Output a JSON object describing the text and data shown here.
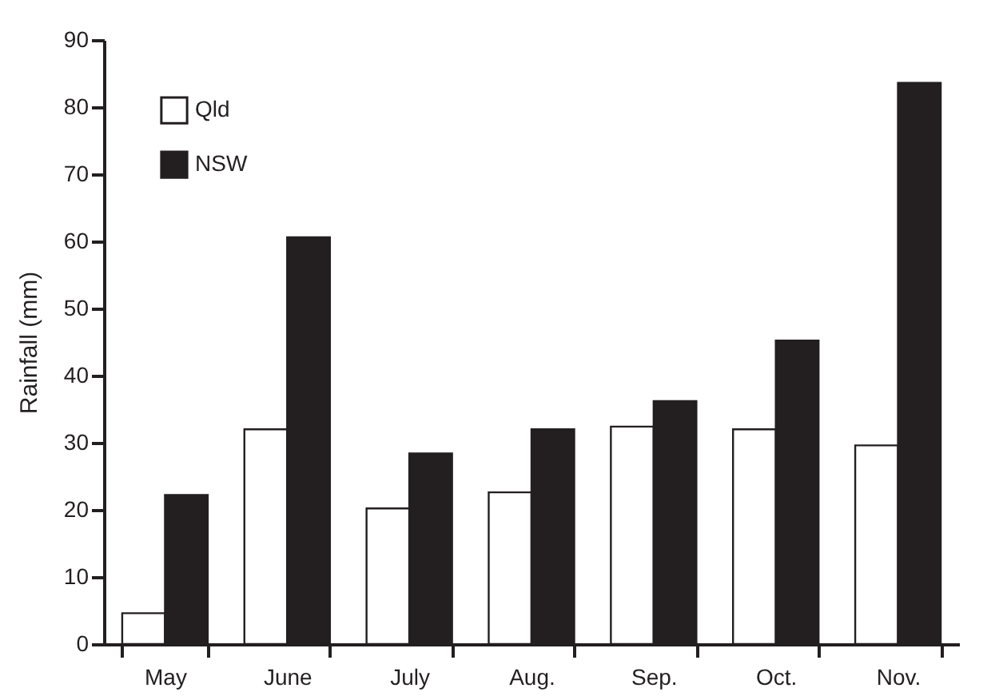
{
  "chart_data": {
    "type": "bar",
    "ylabel": "Rainfall (mm)",
    "categories": [
      "May",
      "June",
      "July",
      "Aug.",
      "Sep.",
      "Oct.",
      "Nov."
    ],
    "series": [
      {
        "name": "Qld",
        "color": "#ffffff",
        "values": [
          4.6,
          32,
          20.2,
          22.6,
          32.4,
          32,
          29.6
        ]
      },
      {
        "name": "NSW",
        "color": "#231f20",
        "values": [
          22.2,
          60.6,
          28.4,
          32,
          36.2,
          45.2,
          83.6
        ]
      }
    ],
    "ylim": [
      0,
      90
    ],
    "yticks": [
      0,
      10,
      20,
      30,
      40,
      50,
      60,
      70,
      80,
      90
    ],
    "grid": false,
    "legend": "top left"
  }
}
